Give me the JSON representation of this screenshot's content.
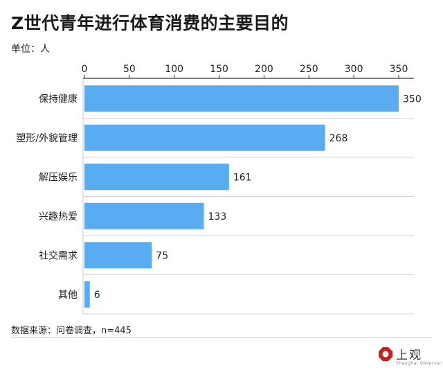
{
  "title": "Z世代青年进行体育消费的主要目的",
  "unit_label": "单位：人",
  "source": "数据来源：问卷调查，n=445",
  "logo": {
    "text": "上观",
    "subtitle": "Shanghai Observer"
  },
  "colors": {
    "bar": "#5aacf2",
    "grid": "#d4d4d4",
    "axis": "#333333"
  },
  "chart_data": {
    "type": "bar",
    "orientation": "horizontal",
    "categories": [
      "保持健康",
      "塑形/外貌管理",
      "解压娱乐",
      "兴趣热爱",
      "社交需求",
      "其他"
    ],
    "values": [
      350,
      268,
      161,
      133,
      75,
      6
    ],
    "xlim": [
      0,
      350
    ],
    "xticks": [
      0,
      50,
      100,
      150,
      200,
      250,
      300,
      350
    ],
    "x_axis_position": "top",
    "grid": true,
    "title": "Z世代青年进行体育消费的主要目的",
    "xlabel": "",
    "ylabel": ""
  }
}
